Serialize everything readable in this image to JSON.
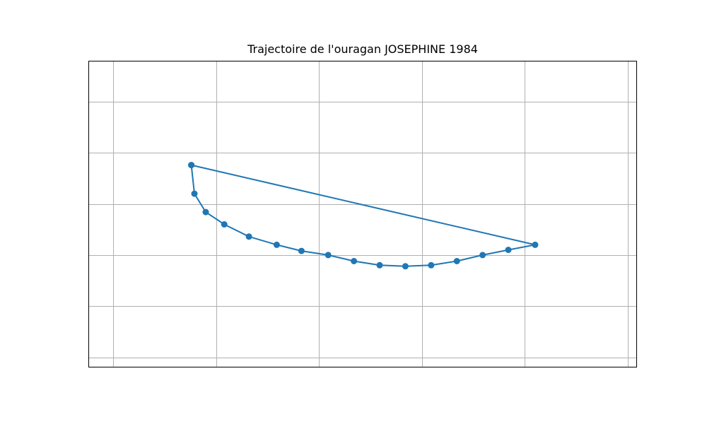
{
  "chart_data": {
    "type": "line",
    "title": "Trajectoire de l'ouragan JOSEPHINE 1984",
    "xlabel": "",
    "ylabel": "",
    "xlim": [
      -84.9,
      -31.6
    ],
    "ylim": [
      8.0,
      38.0
    ],
    "grid": true,
    "x_gridlines": [
      -82.5,
      -72.5,
      -62.5,
      -52.5,
      -42.5,
      -32.5
    ],
    "y_gridlines": [
      9.0,
      14.0,
      19.0,
      24.0,
      29.0,
      34.0
    ],
    "series": [
      {
        "color": "#1f77b4",
        "marker": "circle",
        "points": [
          {
            "x": -74.9,
            "y": 27.8
          },
          {
            "x": -74.6,
            "y": 25.0
          },
          {
            "x": -73.5,
            "y": 23.2
          },
          {
            "x": -71.7,
            "y": 22.0
          },
          {
            "x": -69.3,
            "y": 20.8
          },
          {
            "x": -66.6,
            "y": 20.0
          },
          {
            "x": -64.2,
            "y": 19.4
          },
          {
            "x": -61.6,
            "y": 19.0
          },
          {
            "x": -59.1,
            "y": 18.4
          },
          {
            "x": -56.6,
            "y": 18.0
          },
          {
            "x": -54.1,
            "y": 17.9
          },
          {
            "x": -51.6,
            "y": 18.0
          },
          {
            "x": -49.1,
            "y": 18.4
          },
          {
            "x": -46.6,
            "y": 19.0
          },
          {
            "x": -44.1,
            "y": 19.5
          },
          {
            "x": -41.5,
            "y": 20.0
          },
          {
            "x": -74.9,
            "y": 27.8
          }
        ]
      }
    ]
  }
}
